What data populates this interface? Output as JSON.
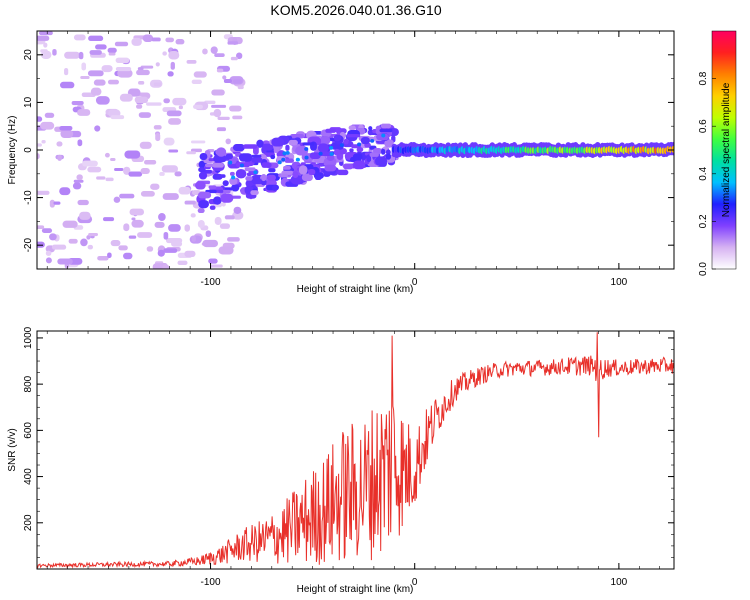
{
  "title": "KOM5.2026.040.01.36.G10",
  "chart_data": [
    {
      "type": "heatmap",
      "name": "spectrogram",
      "xlabel": "Height of straight line (km)",
      "ylabel": "Frequency (Hz)",
      "xlim": [
        -185,
        127
      ],
      "ylim": [
        -25,
        25
      ],
      "xticks": [
        -100,
        0,
        100
      ],
      "yticks": [
        -20,
        -10,
        0,
        10,
        20
      ],
      "colorbar": {
        "label": "Normalized spectral amplitude",
        "range": [
          0,
          1
        ],
        "ticks": [
          0.0,
          0.2,
          0.4,
          0.6,
          0.8
        ],
        "tick_labels": [
          "0.0",
          "0.2",
          "0.4",
          "0.6",
          "0.8"
        ],
        "colormap": [
          "#ffffff",
          "#d6b2f2",
          "#8040ff",
          "#2020ff",
          "#00c0ff",
          "#00e0a0",
          "#40ff40",
          "#c0ff00",
          "#ffd000",
          "#ff8000",
          "#ff2020",
          "#ff0060"
        ]
      },
      "features": {
        "carrier_trace": {
          "x_from": -10,
          "x_to": 127,
          "freq_hz": 0,
          "amplitude_from": 0.3,
          "amplitude_to": 0.9
        },
        "ramp_region": {
          "x_from": -105,
          "x_to": -10,
          "freq_from_hz": -5,
          "freq_to_hz": 5,
          "amplitude": 0.15
        },
        "noise_region": {
          "x_from": -185,
          "x_to": -105,
          "amplitude": 0.05
        }
      }
    },
    {
      "type": "line",
      "name": "snr",
      "xlabel": "Height of straight line (km)",
      "ylabel": "SNR (v/v)",
      "xlim": [
        -185,
        127
      ],
      "ylim": [
        0,
        1030
      ],
      "xticks": [
        -100,
        0,
        100
      ],
      "yticks": [
        200,
        400,
        600,
        800,
        1000
      ],
      "color": "#e8302a",
      "series": [
        {
          "name": "SNR",
          "x": [
            -185,
            -160,
            -140,
            -120,
            -105,
            -95,
            -85,
            -75,
            -65,
            -55,
            -45,
            -35,
            -25,
            -15,
            -10,
            -5,
            0,
            5,
            10,
            15,
            20,
            30,
            40,
            50,
            60,
            70,
            80,
            87,
            90,
            93,
            100,
            110,
            120,
            127
          ],
          "values": [
            15,
            18,
            20,
            22,
            35,
            60,
            100,
            120,
            150,
            200,
            250,
            320,
            350,
            420,
            480,
            420,
            440,
            550,
            650,
            720,
            780,
            830,
            860,
            870,
            870,
            875,
            880,
            880,
            860,
            870,
            870,
            875,
            880,
            880
          ],
          "noise_fraction": [
            0.5,
            0.5,
            0.5,
            0.5,
            0.6,
            0.7,
            0.7,
            0.8,
            0.9,
            0.95,
            0.95,
            0.95,
            0.9,
            0.9,
            0.8,
            0.6,
            0.4,
            0.25,
            0.15,
            0.1,
            0.07,
            0.05,
            0.04,
            0.04,
            0.04,
            0.04,
            0.05,
            0.05,
            0.08,
            0.05,
            0.04,
            0.04,
            0.04,
            0.04
          ]
        }
      ],
      "spikes": [
        {
          "x": -11,
          "y": 1010
        },
        {
          "x": 89.5,
          "y": 1025
        },
        {
          "x": 90,
          "y": 570
        }
      ]
    }
  ]
}
